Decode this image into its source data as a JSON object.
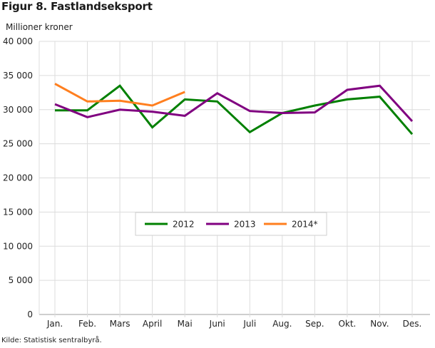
{
  "title": "Figur 8. Fastlandseksport",
  "unit_label": "Millioner kroner",
  "source": "Kilde: Statistisk sentralbyrå.",
  "legend": [
    {
      "label": "2012",
      "color": "#008000"
    },
    {
      "label": "2013",
      "color": "#800080"
    },
    {
      "label": "2014*",
      "color": "#ff7f1f"
    }
  ],
  "chart_data": {
    "type": "line",
    "title": "Figur 8. Fastlandseksport",
    "xlabel": "",
    "ylabel": "Millioner kroner",
    "ylim": [
      0,
      40000
    ],
    "yticks": [
      0,
      5000,
      10000,
      15000,
      20000,
      25000,
      30000,
      35000,
      40000
    ],
    "ytick_labels": [
      "0",
      "5 000",
      "10 000",
      "15 000",
      "20 000",
      "25 000",
      "30 000",
      "35 000",
      "40 000"
    ],
    "categories": [
      "Jan.",
      "Feb.",
      "Mars",
      "April",
      "Mai",
      "Juni",
      "Juli",
      "Aug.",
      "Sep.",
      "Okt.",
      "Nov.",
      "Des."
    ],
    "grid": true,
    "legend_position": "inside-center",
    "series": [
      {
        "name": "2012",
        "color": "#008000",
        "values": [
          29900,
          29900,
          33500,
          27400,
          31500,
          31200,
          26700,
          29500,
          30600,
          31500,
          31900,
          26400
        ]
      },
      {
        "name": "2013",
        "color": "#800080",
        "values": [
          30800,
          28900,
          30000,
          29700,
          29100,
          32400,
          29800,
          29500,
          29600,
          32900,
          33500,
          28300
        ]
      },
      {
        "name": "2014*",
        "color": "#ff7f1f",
        "values": [
          33800,
          31200,
          31300,
          30600,
          32600
        ]
      }
    ],
    "source": "Kilde: Statistisk sentralbyrå."
  }
}
